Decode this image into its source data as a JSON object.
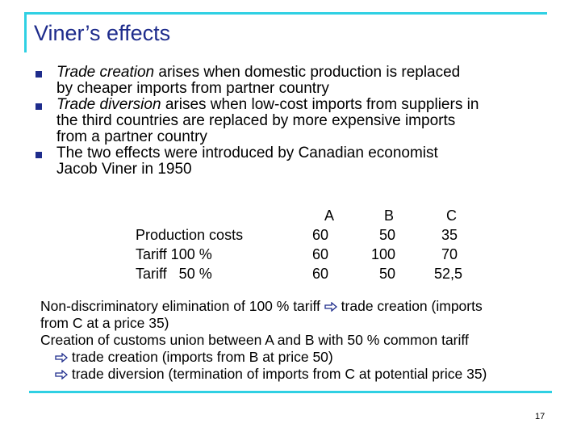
{
  "slide": {
    "title": "Viner’s effects",
    "bullets": [
      {
        "italic": "Trade creation",
        "rest": " arises when domestic production is replaced",
        "line2": "by cheaper imports from partner country"
      },
      {
        "italic": "Trade diversion",
        "rest": " arises when low-cost imports from suppliers in",
        "line2": "the third countries are replaced by more expensive imports",
        "line3": "from a partner country"
      },
      {
        "italic": "",
        "rest": "The two effects were introduced by Canadian economist",
        "line2": "Jacob Viner in 1950"
      }
    ],
    "table": {
      "columns": [
        "A",
        "B",
        "C"
      ],
      "rows": [
        {
          "label": "Production costs",
          "values": [
            "60",
            "50",
            "35"
          ]
        },
        {
          "label": "Tariff 100 %",
          "values": [
            "60",
            "100",
            "70"
          ]
        },
        {
          "label": "Tariff   50 %",
          "values": [
            "60",
            "50",
            "52,5"
          ]
        }
      ]
    },
    "bottom": {
      "line1_a": "Non-discriminatory elimination of 100 % tariff",
      "line1_b": " trade creation (imports",
      "line2": "from C at a price 35)",
      "line3": "Creation of customs union between A and B with 50 % common tariff",
      "line4": " trade creation (imports from B at price 50)",
      "line5": " trade diversion (termination of imports from C at potential price 35)"
    },
    "page_number": "17",
    "colors": {
      "accent_line": "#2fd0e3",
      "title": "#1e2c8c",
      "bullet": "#1e2c8c"
    }
  }
}
